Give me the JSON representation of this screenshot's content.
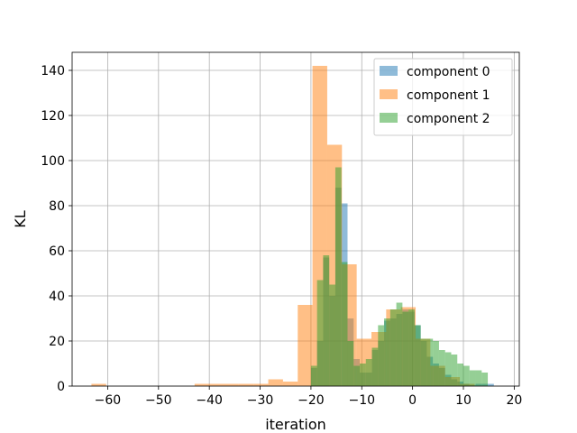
{
  "chart_data": {
    "type": "histogram",
    "title": "",
    "xlabel": "iteration",
    "ylabel": "KL",
    "xlim": [
      -67,
      21
    ],
    "ylim": [
      0,
      148
    ],
    "xticks": [
      -60,
      -50,
      -40,
      -30,
      -20,
      -10,
      0,
      10,
      20
    ],
    "yticks": [
      0,
      20,
      40,
      60,
      80,
      100,
      120,
      140
    ],
    "grid": true,
    "legend_position": "top-right",
    "series": [
      {
        "name": "component 0",
        "color": "#1f77b4",
        "opacity": 0.5,
        "bins": [
          [
            -20.0,
            -18.8,
            8
          ],
          [
            -18.8,
            -17.6,
            20
          ],
          [
            -17.6,
            -16.4,
            57
          ],
          [
            -16.4,
            -15.2,
            40
          ],
          [
            -15.2,
            -14.0,
            88
          ],
          [
            -14.0,
            -12.8,
            81
          ],
          [
            -12.8,
            -11.6,
            30
          ],
          [
            -11.6,
            -10.4,
            12
          ],
          [
            -10.4,
            -9.2,
            6
          ],
          [
            -9.2,
            -8.0,
            6
          ],
          [
            -8.0,
            -6.8,
            16
          ],
          [
            -6.8,
            -5.6,
            20
          ],
          [
            -5.6,
            -4.4,
            29
          ],
          [
            -4.4,
            -3.2,
            30
          ],
          [
            -3.2,
            -2.0,
            32
          ],
          [
            -2.0,
            -0.8,
            34
          ],
          [
            -0.8,
            0.4,
            33
          ],
          [
            0.4,
            1.6,
            27
          ],
          [
            1.6,
            2.8,
            20
          ],
          [
            2.8,
            4.0,
            13
          ],
          [
            4.0,
            5.2,
            10
          ],
          [
            5.2,
            6.4,
            8
          ],
          [
            6.4,
            7.6,
            5
          ],
          [
            7.6,
            8.8,
            3
          ],
          [
            8.8,
            10.0,
            2
          ],
          [
            10.0,
            11.2,
            1
          ],
          [
            11.2,
            12.4,
            0.5
          ],
          [
            12.4,
            13.6,
            1
          ],
          [
            13.6,
            14.8,
            1
          ],
          [
            14.8,
            16.0,
            1
          ]
        ]
      },
      {
        "name": "component 1",
        "color": "#ff7f0e",
        "opacity": 0.5,
        "bins": [
          [
            -63.2,
            -60.3,
            1
          ],
          [
            -60.3,
            -57.4,
            0
          ],
          [
            -57.4,
            -54.5,
            0
          ],
          [
            -54.5,
            -51.6,
            0
          ],
          [
            -51.6,
            -48.7,
            0
          ],
          [
            -48.7,
            -45.8,
            0
          ],
          [
            -45.8,
            -42.9,
            0
          ],
          [
            -42.9,
            -40.0,
            1
          ],
          [
            -40.0,
            -37.1,
            1
          ],
          [
            -37.1,
            -34.2,
            1
          ],
          [
            -34.2,
            -31.3,
            1
          ],
          [
            -31.3,
            -28.4,
            1
          ],
          [
            -28.4,
            -25.5,
            3
          ],
          [
            -25.5,
            -22.6,
            2
          ],
          [
            -22.6,
            -19.7,
            36
          ],
          [
            -19.7,
            -16.8,
            142
          ],
          [
            -16.8,
            -13.9,
            107
          ],
          [
            -13.9,
            -11.0,
            54
          ],
          [
            -11.0,
            -8.1,
            21
          ],
          [
            -8.1,
            -5.2,
            24
          ],
          [
            -5.2,
            -2.3,
            34
          ],
          [
            -2.3,
            0.6,
            35
          ],
          [
            0.6,
            3.5,
            21
          ],
          [
            3.5,
            6.4,
            9
          ],
          [
            6.4,
            9.3,
            4
          ],
          [
            9.3,
            12.2,
            1
          ]
        ]
      },
      {
        "name": "component 2",
        "color": "#2ca02c",
        "opacity": 0.5,
        "bins": [
          [
            -20.0,
            -18.8,
            9
          ],
          [
            -18.8,
            -17.6,
            47
          ],
          [
            -17.6,
            -16.4,
            58
          ],
          [
            -16.4,
            -15.2,
            45
          ],
          [
            -15.2,
            -14.0,
            97
          ],
          [
            -14.0,
            -12.8,
            55
          ],
          [
            -12.8,
            -11.6,
            20
          ],
          [
            -11.6,
            -10.4,
            9
          ],
          [
            -10.4,
            -9.2,
            10
          ],
          [
            -9.2,
            -8.0,
            12
          ],
          [
            -8.0,
            -6.8,
            17
          ],
          [
            -6.8,
            -5.6,
            27
          ],
          [
            -5.6,
            -4.4,
            30
          ],
          [
            -4.4,
            -3.2,
            34
          ],
          [
            -3.2,
            -2.0,
            37
          ],
          [
            -2.0,
            -0.8,
            33
          ],
          [
            -0.8,
            0.4,
            34
          ],
          [
            0.4,
            1.6,
            27
          ],
          [
            1.6,
            2.8,
            21
          ],
          [
            2.8,
            4.0,
            21
          ],
          [
            4.0,
            5.2,
            20
          ],
          [
            5.2,
            6.4,
            16
          ],
          [
            6.4,
            7.6,
            15
          ],
          [
            7.6,
            8.8,
            14
          ],
          [
            8.8,
            10.0,
            10
          ],
          [
            10.0,
            11.2,
            9
          ],
          [
            11.2,
            12.4,
            7
          ],
          [
            12.4,
            13.6,
            7
          ],
          [
            13.6,
            14.8,
            6
          ]
        ]
      }
    ]
  }
}
